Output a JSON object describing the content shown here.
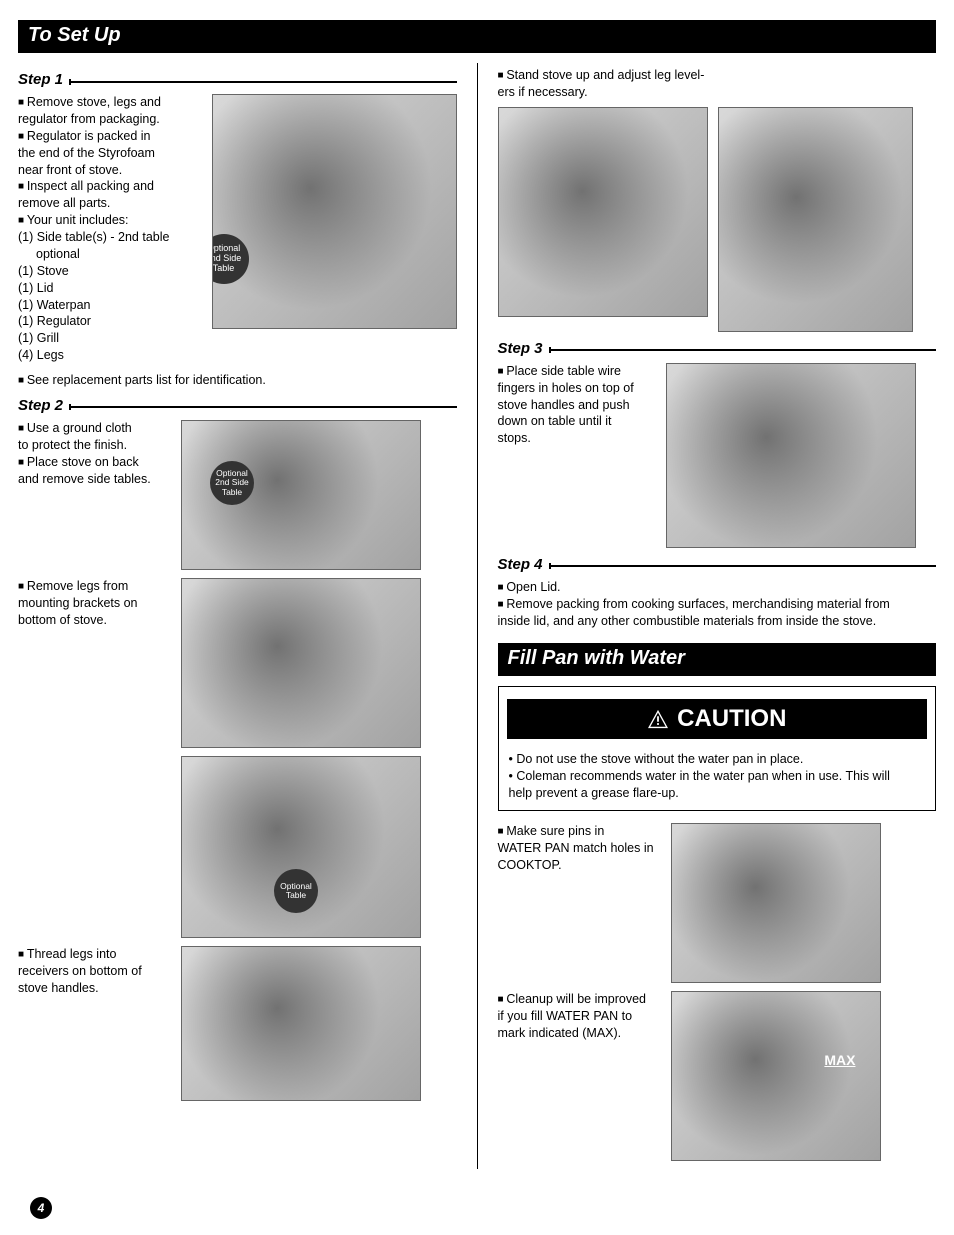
{
  "section1_title": "To Set Up",
  "section2_title": "Fill Pan with Water",
  "caution_title": "CAUTION",
  "page_number": "4",
  "callouts": {
    "optional_2nd_side_table": "Optional 2nd Side Table",
    "optional_table": "Optional Table"
  },
  "max_label": "MAX",
  "steps": {
    "s1": {
      "label": "Step 1",
      "lines": [
        {
          "b": true,
          "t": "Remove stove, legs and"
        },
        {
          "b": false,
          "t": "regulator from packaging."
        },
        {
          "b": true,
          "t": "Regulator is packed in"
        },
        {
          "b": false,
          "t": "the end of the Styrofoam"
        },
        {
          "b": false,
          "t": "near front of stove."
        },
        {
          "b": true,
          "t": "Inspect all packing and"
        },
        {
          "b": false,
          "t": "remove all parts."
        },
        {
          "b": true,
          "t": "Your unit includes:"
        },
        {
          "b": false,
          "t": "(1) Side table(s) - 2nd table"
        },
        {
          "b": false,
          "indent": true,
          "t": "optional"
        },
        {
          "b": false,
          "t": "(1) Stove"
        },
        {
          "b": false,
          "t": "(1) Lid"
        },
        {
          "b": false,
          "t": "(1) Waterpan"
        },
        {
          "b": false,
          "t": "(1) Regulator"
        },
        {
          "b": false,
          "t": "(1) Grill"
        },
        {
          "b": false,
          "t": "(4) Legs"
        }
      ],
      "footer": "See replacement parts list for identification."
    },
    "s2": {
      "label": "Step 2",
      "block_a": [
        {
          "b": true,
          "t": "Use a ground cloth"
        },
        {
          "b": false,
          "t": "to protect the finish."
        },
        {
          "b": true,
          "t": "Place stove on back"
        },
        {
          "b": false,
          "t": "and remove side tables."
        }
      ],
      "block_b": [
        {
          "b": true,
          "t": "Remove legs from"
        },
        {
          "b": false,
          "t": "mounting brackets on"
        },
        {
          "b": false,
          "t": "bottom of stove."
        }
      ],
      "block_c": [
        {
          "b": true,
          "t": "Thread legs into"
        },
        {
          "b": false,
          "t": "receivers on bottom of"
        },
        {
          "b": false,
          "t": "stove handles."
        }
      ]
    },
    "s2_cont": [
      {
        "b": true,
        "t": "Stand stove up and adjust leg level-"
      },
      {
        "b": false,
        "t": "ers if necessary."
      }
    ],
    "s3": {
      "label": "Step 3",
      "lines": [
        {
          "b": true,
          "t": "Place side table wire"
        },
        {
          "b": false,
          "t": "fingers in holes on top of"
        },
        {
          "b": false,
          "t": "stove handles and push"
        },
        {
          "b": false,
          "t": "down on table until it"
        },
        {
          "b": false,
          "t": "stops."
        }
      ]
    },
    "s4": {
      "label": "Step 4",
      "lines": [
        {
          "b": true,
          "t": "Open Lid."
        },
        {
          "b": true,
          "t": "Remove packing from cooking surfaces, merchandising material from"
        },
        {
          "b": false,
          "t": "inside lid, and any other combustible materials from inside the stove."
        }
      ]
    }
  },
  "caution_lines": [
    {
      "d": true,
      "t": "Do not use the stove without the water pan in place."
    },
    {
      "d": true,
      "t": "Coleman recommends water in the water pan when in use. This will"
    },
    {
      "d": false,
      "t": "help prevent a grease flare-up."
    }
  ],
  "fill_block_a": [
    {
      "b": true,
      "t": "Make sure pins in"
    },
    {
      "b": false,
      "t": "WATER PAN match holes in"
    },
    {
      "b": false,
      "t": "COOKTOP."
    }
  ],
  "fill_block_b": [
    {
      "b": true,
      "t": "Cleanup will be improved"
    },
    {
      "b": false,
      "t": "if you fill WATER PAN to"
    },
    {
      "b": false,
      "t": "mark indicated (MAX)."
    }
  ]
}
